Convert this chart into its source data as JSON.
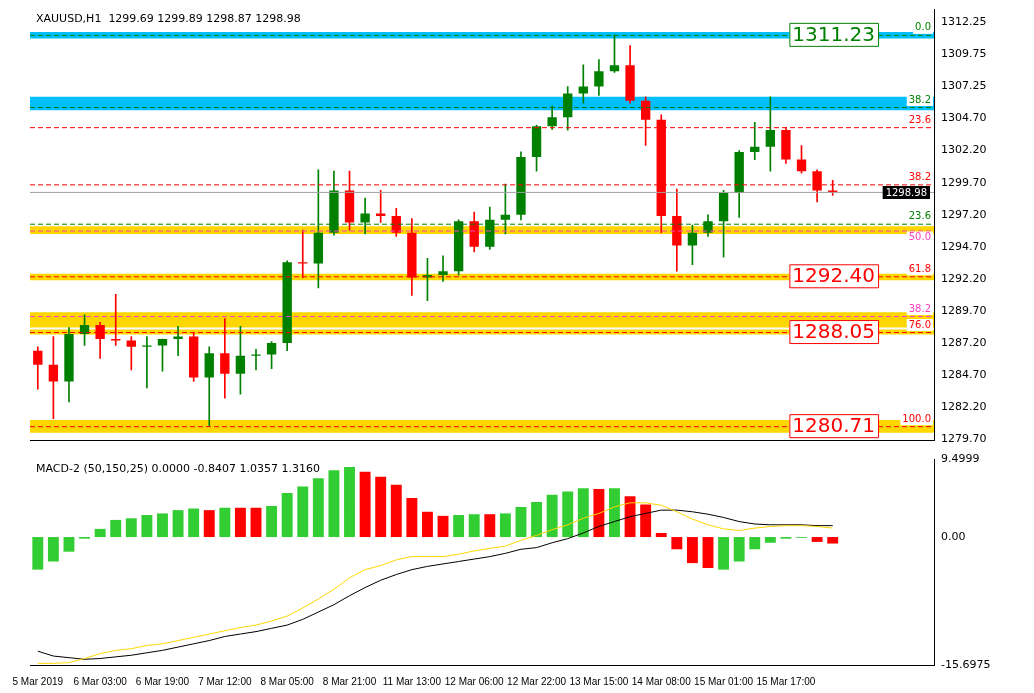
{
  "chart_data": [
    {
      "type": "candlestick",
      "title": "XAUUSD,H1  1299.69 1299.89 1298.87 1298.98",
      "categories": [
        null,
        null,
        null,
        null,
        null,
        null,
        null,
        null,
        null,
        null,
        null,
        null,
        null,
        null,
        null,
        null,
        null,
        null,
        null,
        null,
        null,
        null,
        null,
        null,
        null,
        null,
        null,
        null,
        null,
        null,
        null,
        null,
        null,
        null,
        null,
        null,
        null,
        null,
        null,
        null,
        null,
        null,
        null,
        null,
        null,
        null,
        null,
        null,
        null,
        null,
        null,
        null,
        null,
        null,
        null,
        null,
        null,
        null
      ],
      "ohlc": [
        [
          1286.6,
          1286.9,
          1283.6,
          1285.5
        ],
        [
          1285.5,
          1287.7,
          1281.3,
          1284.2
        ],
        [
          1284.2,
          1288.4,
          1282.6,
          1287.9
        ],
        [
          1287.9,
          1289.4,
          1287.0,
          1288.6
        ],
        [
          1288.6,
          1288.8,
          1286.0,
          1287.5
        ],
        [
          1287.5,
          1291.0,
          1287.0,
          1287.4
        ],
        [
          1287.4,
          1287.7,
          1285.1,
          1286.9
        ],
        [
          1286.9,
          1287.7,
          1283.7,
          1287.0
        ],
        [
          1287.0,
          1287.5,
          1285.0,
          1287.5
        ],
        [
          1287.5,
          1288.5,
          1286.2,
          1287.7
        ],
        [
          1287.7,
          1288.0,
          1284.2,
          1284.5
        ],
        [
          1284.5,
          1286.9,
          1280.71,
          1286.4
        ],
        [
          1286.4,
          1289.1,
          1282.9,
          1284.8
        ],
        [
          1284.8,
          1288.5,
          1283.2,
          1286.2
        ],
        [
          1286.2,
          1286.7,
          1285.1,
          1286.3
        ],
        [
          1286.3,
          1287.3,
          1285.2,
          1287.2
        ],
        [
          1287.2,
          1293.6,
          1286.6,
          1293.5
        ],
        [
          1293.5,
          1296.0,
          1292.3,
          1293.4
        ],
        [
          1293.4,
          1300.7,
          1291.5,
          1295.8
        ],
        [
          1295.8,
          1300.6,
          1295.6,
          1299.1
        ],
        [
          1299.1,
          1300.6,
          1296.0,
          1296.6
        ],
        [
          1296.6,
          1298.5,
          1295.7,
          1297.3
        ],
        [
          1297.3,
          1299.1,
          1296.6,
          1297.1
        ],
        [
          1297.1,
          1297.7,
          1295.5,
          1295.8
        ],
        [
          1295.8,
          1296.9,
          1290.9,
          1292.3
        ],
        [
          1292.3,
          1293.8,
          1290.5,
          1292.5
        ],
        [
          1292.5,
          1294.0,
          1292.0,
          1292.8
        ],
        [
          1292.8,
          1296.8,
          1292.5,
          1296.7
        ],
        [
          1296.7,
          1297.4,
          1294.3,
          1294.7
        ],
        [
          1294.7,
          1297.8,
          1294.5,
          1296.8
        ],
        [
          1296.8,
          1299.6,
          1295.7,
          1297.2
        ],
        [
          1297.2,
          1302.1,
          1296.8,
          1301.7
        ],
        [
          1301.7,
          1304.2,
          1300.6,
          1304.1
        ],
        [
          1304.1,
          1305.7,
          1303.85,
          1304.8
        ],
        [
          1304.8,
          1307.2,
          1303.8,
          1306.65
        ],
        [
          1306.65,
          1308.9,
          1305.9,
          1307.2
        ],
        [
          1307.2,
          1309.3,
          1306.5,
          1308.4
        ],
        [
          1308.4,
          1311.23,
          1308.3,
          1308.85
        ],
        [
          1308.85,
          1310.4,
          1305.9,
          1306.1
        ],
        [
          1306.1,
          1306.4,
          1302.6,
          1304.6
        ],
        [
          1304.6,
          1305.0,
          1295.8,
          1297.1
        ],
        [
          1297.1,
          1299.2,
          1292.8,
          1294.8
        ],
        [
          1294.8,
          1296.4,
          1293.3,
          1295.8
        ],
        [
          1295.8,
          1297.2,
          1295.5,
          1296.7
        ],
        [
          1296.7,
          1299.1,
          1293.9,
          1298.9
        ],
        [
          1298.9,
          1302.2,
          1297.0,
          1302.1
        ],
        [
          1302.1,
          1304.4,
          1301.5,
          1302.5
        ],
        [
          1302.5,
          1306.4,
          1300.6,
          1303.8
        ],
        [
          1303.8,
          1304.0,
          1301.2,
          1301.5
        ],
        [
          1301.5,
          1302.6,
          1300.45,
          1300.6
        ],
        [
          1300.6,
          1300.7,
          1298.2,
          1299.1
        ],
        [
          1299.1,
          1299.89,
          1298.7,
          1298.98
        ],
        null,
        null,
        null,
        null,
        null,
        null
      ],
      "colors": [
        "#ff0000",
        "#ff0000",
        "#008000",
        "#008000",
        "#ff0000",
        "#ff0000",
        "#ff0000",
        "#008000",
        "#008000",
        "#008000",
        "#ff0000",
        "#008000",
        "#ff0000",
        "#008000",
        "#008000",
        "#008000",
        "#008000",
        "#ff0000",
        "#008000",
        "#008000",
        "#ff0000",
        "#008000",
        "#ff0000",
        "#ff0000",
        "#ff0000",
        "#008000",
        "#008000",
        "#008000",
        "#ff0000",
        "#008000",
        "#008000",
        "#008000",
        "#008000",
        "#008000",
        "#008000",
        "#008000",
        "#008000",
        "#008000",
        "#ff0000",
        "#ff0000",
        "#ff0000",
        "#ff0000",
        "#008000",
        "#008000",
        "#008000",
        "#008000",
        "#008000",
        "#008000",
        "#ff0000",
        "#ff0000",
        "#ff0000",
        "#ff0000",
        null,
        null,
        null,
        null,
        null,
        null
      ],
      "ylim": [
        1279.6,
        1313.2
      ],
      "yticks": [
        {
          "value": 1312.25,
          "label": "1312.25"
        },
        {
          "value": 1309.75,
          "label": "1309.75"
        },
        {
          "value": 1307.25,
          "label": "1307.25"
        },
        {
          "value": 1304.7,
          "label": "1304.70"
        },
        {
          "value": 1302.2,
          "label": "1302.20"
        },
        {
          "value": 1299.7,
          "label": "1299.70"
        },
        {
          "value": 1297.2,
          "label": "1297.20"
        },
        {
          "value": 1294.7,
          "label": "1294.70"
        },
        {
          "value": 1292.2,
          "label": "1292.20"
        },
        {
          "value": 1289.7,
          "label": "1289.70"
        },
        {
          "value": 1287.2,
          "label": "1287.20"
        },
        {
          "value": 1284.7,
          "label": "1284.70"
        },
        {
          "value": 1282.2,
          "label": "1282.20"
        },
        {
          "value": 1279.7,
          "label": "1279.70"
        }
      ],
      "tick_labels": "y",
      "grid": false,
      "legend": false,
      "bands": [
        {
          "axis": "y",
          "from": 1310.95,
          "to": 1311.45,
          "color": "#00bfff"
        },
        {
          "axis": "y",
          "from": 1305.35,
          "to": 1306.4,
          "color": "#00bfff"
        },
        {
          "axis": "y",
          "from": 1295.7,
          "to": 1296.3,
          "color": "#ffd700"
        },
        {
          "axis": "y",
          "from": 1292.1,
          "to": 1292.6,
          "color": "#ffd700"
        },
        {
          "axis": "y",
          "from": 1288.4,
          "to": 1289.6,
          "color": "#ffd700"
        },
        {
          "axis": "y",
          "from": 1287.85,
          "to": 1288.25,
          "color": "#ffd700"
        },
        {
          "axis": "y",
          "from": 1280.2,
          "to": 1281.2,
          "color": "#ffd700"
        }
      ],
      "ref_lines": [
        {
          "axis": "y",
          "value": 1311.23,
          "label": "1311.23",
          "color": "#008000",
          "line_style": "dashed"
        },
        {
          "axis": "y",
          "value": 1305.6,
          "color": "#008000",
          "line_style": "dashed"
        },
        {
          "axis": "y",
          "value": 1304.03,
          "color": "#ff0000",
          "line_style": "dashed"
        },
        {
          "axis": "y",
          "value": 1299.57,
          "color": "#ff0000",
          "line_style": "dashed"
        },
        {
          "axis": "y",
          "value": 1298.98,
          "label": "1298.98",
          "color": "#a0a0a0",
          "line_style": "solid"
        },
        {
          "axis": "y",
          "value": 1296.5,
          "color": "#008000",
          "line_style": "dashed"
        },
        {
          "axis": "y",
          "value": 1295.97,
          "color": "#ff40c0",
          "line_style": "dashed"
        },
        {
          "axis": "y",
          "value": 1292.4,
          "label": "1292.40",
          "color": "#ff0000",
          "line_style": "dashed"
        },
        {
          "axis": "y",
          "value": 1289.3,
          "color": "#ff40c0",
          "line_style": "dashed"
        },
        {
          "axis": "y",
          "value": 1288.05,
          "label": "1288.05",
          "color": "#ff0000",
          "line_style": "dashed"
        },
        {
          "axis": "y",
          "value": 1280.71,
          "label": "1280.71",
          "color": "#ff0000",
          "line_style": "dashed"
        }
      ],
      "annotations": [
        {
          "text": "0.0",
          "y": 1311.23
        },
        {
          "text": "38.2",
          "y": 1305.6
        },
        {
          "text": "23.6",
          "y": 1304.03
        },
        {
          "text": "38.2",
          "y": 1299.57
        },
        {
          "text": "23.6",
          "y": 1296.5
        },
        {
          "text": "50.0",
          "y": 1295.97
        },
        {
          "text": "61.8",
          "y": 1292.4
        },
        {
          "text": "38.2",
          "y": 1289.3
        },
        {
          "text": "76.0",
          "y": 1288.05
        },
        {
          "text": "100.0",
          "y": 1280.71
        }
      ]
    },
    {
      "type": "bar",
      "title": "MACD-2 (50,150,25) 0.0000 -0.8407 1.0357 1.3160",
      "categories": [
        "5 Mar 2019",
        null,
        null,
        null,
        "6 Mar 03:00",
        null,
        null,
        null,
        "6 Mar 19:00",
        null,
        null,
        null,
        "7 Mar 12:00",
        null,
        null,
        null,
        "8 Mar 05:00",
        null,
        null,
        null,
        "8 Mar 21:00",
        null,
        null,
        null,
        "11 Mar 13:00",
        null,
        null,
        null,
        "12 Mar 06:00",
        null,
        null,
        null,
        "12 Mar 22:00",
        null,
        null,
        null,
        "13 Mar 15:00",
        null,
        null,
        null,
        "14 Mar 08:00",
        null,
        null,
        null,
        "15 Mar 01:00",
        null,
        null,
        null,
        "15 Mar 17:00",
        null,
        null,
        null,
        null,
        null,
        null,
        null,
        null,
        null
      ],
      "series": [
        {
          "type": "bar",
          "values": [
            -4.0,
            -3.0,
            -1.8,
            -0.2,
            1.0,
            2.1,
            2.3,
            2.7,
            2.9,
            3.3,
            3.5,
            3.3,
            3.6,
            3.6,
            3.6,
            3.8,
            5.4,
            6.2,
            7.2,
            8.2,
            8.6,
            8.0,
            7.4,
            6.4,
            4.8,
            3.1,
            2.6,
            2.7,
            2.8,
            2.8,
            2.9,
            3.7,
            4.3,
            5.2,
            5.6,
            6.0,
            5.9,
            6.0,
            5.0,
            4.0,
            0.5,
            -1.5,
            -3.2,
            -3.8,
            -4.0,
            -3.0,
            -1.5,
            -0.7,
            -0.2,
            -0.1,
            -0.6,
            -0.8,
            null,
            null,
            null,
            null,
            null,
            null
          ],
          "colors": [
            "#32cd32",
            "#32cd32",
            "#32cd32",
            "#32cd32",
            "#32cd32",
            "#32cd32",
            "#32cd32",
            "#32cd32",
            "#32cd32",
            "#32cd32",
            "#32cd32",
            "#ff0000",
            "#32cd32",
            "#ff0000",
            "#ff0000",
            "#32cd32",
            "#32cd32",
            "#32cd32",
            "#32cd32",
            "#32cd32",
            "#32cd32",
            "#ff0000",
            "#ff0000",
            "#ff0000",
            "#ff0000",
            "#ff0000",
            "#ff0000",
            "#32cd32",
            "#32cd32",
            "#ff0000",
            "#32cd32",
            "#32cd32",
            "#32cd32",
            "#32cd32",
            "#32cd32",
            "#32cd32",
            "#ff0000",
            "#32cd32",
            "#ff0000",
            "#ff0000",
            "#ff0000",
            "#ff0000",
            "#ff0000",
            "#ff0000",
            "#32cd32",
            "#32cd32",
            "#32cd32",
            "#32cd32",
            "#32cd32",
            "#32cd32",
            "#ff0000",
            "#ff0000",
            null,
            null,
            null,
            null,
            null,
            null
          ]
        },
        {
          "type": "line",
          "color": "#ffd700",
          "values": [
            -15.5,
            -15.5,
            -15.4,
            -14.9,
            -14.3,
            -13.9,
            -13.7,
            -13.3,
            -13.1,
            -12.7,
            -12.3,
            -11.9,
            -11.5,
            -11.1,
            -10.8,
            -10.3,
            -9.7,
            -8.7,
            -7.6,
            -6.4,
            -5.0,
            -4.0,
            -3.5,
            -2.8,
            -2.4,
            -2.4,
            -2.4,
            -2.1,
            -1.7,
            -1.4,
            -1.1,
            -0.4,
            0.2,
            0.9,
            1.5,
            2.3,
            2.9,
            3.7,
            4.2,
            4.2,
            3.9,
            3.1,
            2.2,
            1.5,
            1.0,
            0.8,
            1.1,
            1.3,
            1.4,
            1.4,
            1.3,
            1.1,
            null,
            null,
            null,
            null,
            null,
            null
          ]
        },
        {
          "type": "line",
          "color": "#000000",
          "values": [
            -14.0,
            -14.6,
            -14.8,
            -15.0,
            -14.9,
            -14.7,
            -14.5,
            -14.2,
            -13.9,
            -13.5,
            -13.1,
            -12.7,
            -12.2,
            -11.9,
            -11.6,
            -11.2,
            -10.8,
            -10.1,
            -9.2,
            -8.3,
            -7.2,
            -6.2,
            -5.3,
            -4.6,
            -4.0,
            -3.6,
            -3.3,
            -3.0,
            -2.7,
            -2.4,
            -2.0,
            -1.5,
            -1.3,
            -0.7,
            -0.2,
            0.5,
            1.3,
            1.9,
            2.5,
            2.9,
            3.3,
            3.3,
            3.1,
            2.8,
            2.4,
            1.9,
            1.6,
            1.5,
            1.5,
            1.5,
            1.4,
            1.4,
            null,
            null,
            null,
            null,
            null,
            null
          ]
        }
      ],
      "ylim": [
        -15.6975,
        9.4999
      ],
      "yticks": [
        9.4999,
        {
          "value": 0,
          "label": "0.00"
        },
        -15.6975
      ],
      "marker": "none",
      "line_style": "solid",
      "grid": false,
      "legend": false
    }
  ]
}
